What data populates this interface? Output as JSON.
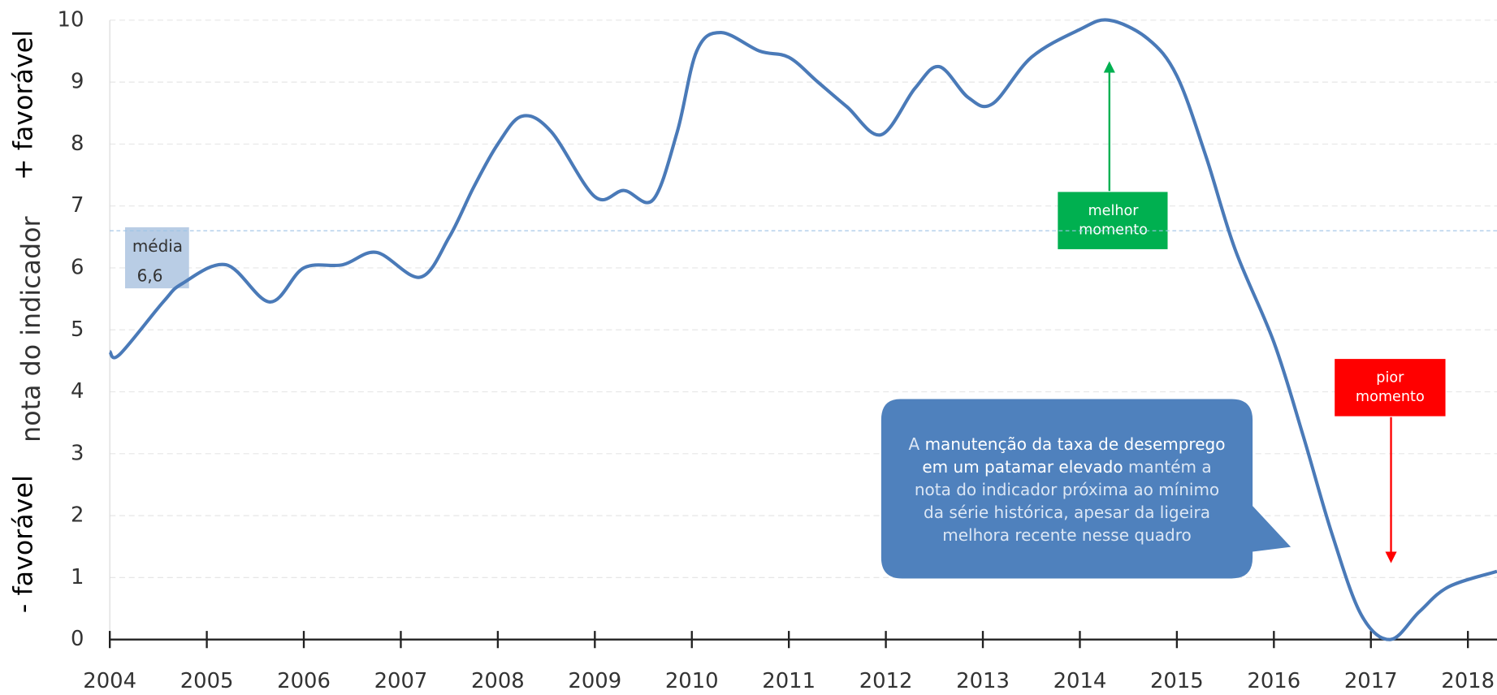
{
  "chart_data": {
    "type": "line",
    "y_label": "nota do indicador",
    "y_label_top": "+ favorável",
    "y_label_bottom": "- favorável",
    "x": [
      2004.0,
      2004.1,
      2004.55,
      2004.75,
      2005.2,
      2005.65,
      2006.0,
      2006.4,
      2006.75,
      2007.2,
      2007.5,
      2007.75,
      2008.0,
      2008.25,
      2008.55,
      2009.0,
      2009.3,
      2009.6,
      2009.85,
      2010.05,
      2010.3,
      2010.7,
      2011.0,
      2011.3,
      2011.6,
      2011.95,
      2012.3,
      2012.55,
      2012.85,
      2013.1,
      2013.5,
      2014.0,
      2014.3,
      2014.7,
      2015.0,
      2015.3,
      2015.6,
      2016.0,
      2016.3,
      2016.6,
      2016.9,
      2017.2,
      2017.5,
      2017.8,
      2018.3
    ],
    "series": [
      {
        "name": "nota do indicador",
        "color": "#4a7ab8",
        "values": [
          4.65,
          4.6,
          5.45,
          5.75,
          6.05,
          5.45,
          6.0,
          6.05,
          6.25,
          5.85,
          6.5,
          7.3,
          8.0,
          8.45,
          8.2,
          7.15,
          7.25,
          7.1,
          8.2,
          9.5,
          9.8,
          9.5,
          9.4,
          9.0,
          8.6,
          8.15,
          8.9,
          9.25,
          8.75,
          8.65,
          9.4,
          9.85,
          10.0,
          9.7,
          9.1,
          7.8,
          6.3,
          4.8,
          3.3,
          1.7,
          0.4,
          0.0,
          0.45,
          0.85,
          1.1
        ]
      }
    ],
    "xlim": [
      2004,
      2018.3
    ],
    "xticks": [
      2004,
      2005,
      2006,
      2007,
      2008,
      2009,
      2010,
      2011,
      2012,
      2013,
      2014,
      2015,
      2016,
      2017,
      2018
    ],
    "ylim": [
      0,
      10
    ],
    "yticks": [
      0,
      1,
      2,
      3,
      4,
      5,
      6,
      7,
      8,
      9,
      10
    ],
    "grid": true,
    "mean": {
      "value": 6.6,
      "label": "6,6"
    },
    "mean_title": "média",
    "best": "melhor momento",
    "worst": "pior momento",
    "callout": [
      "A ",
      "manutenção da taxa de desemprego em um patamar elevado",
      " mantém a nota do indicador próxima ao mínimo da série histórica, apesar da ligeira melhora recente nesse quadro"
    ]
  }
}
